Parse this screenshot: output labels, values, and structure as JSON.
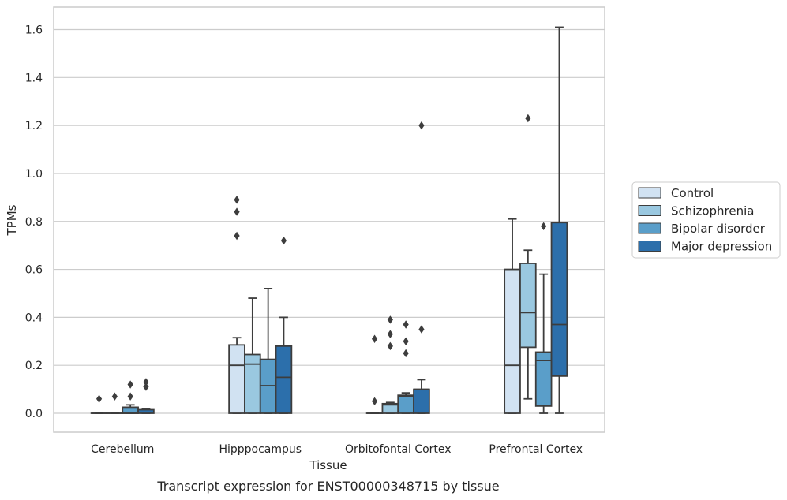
{
  "chart_data": {
    "type": "box",
    "xlabel": "Tissue",
    "ylabel": "TPMs",
    "caption": "Transcript expression for ENST00000348715 by tissue",
    "ylim": [
      -0.08,
      1.69
    ],
    "yticks": [
      "0.0",
      "0.2",
      "0.4",
      "0.6",
      "0.8",
      "1.0",
      "1.2",
      "1.4",
      "1.6"
    ],
    "grid": "horizontal",
    "legend_position": "right",
    "categories": [
      "Cerebellum",
      "Hipppocampus",
      "Orbitofontal Cortex",
      "Prefrontal Cortex"
    ],
    "series": [
      {
        "name": "Control",
        "color": "#d1e2f2",
        "boxes": [
          {
            "q1": 0.0,
            "median": 0.0,
            "q3": 0.0,
            "whislo": 0.0,
            "whishi": 0.0,
            "fliers": [
              0.06
            ]
          },
          {
            "q1": 0.0,
            "median": 0.2,
            "q3": 0.285,
            "whislo": 0.0,
            "whishi": 0.315,
            "fliers": [
              0.74,
              0.84,
              0.89
            ]
          },
          {
            "q1": 0.0,
            "median": 0.0,
            "q3": 0.0,
            "whislo": 0.0,
            "whishi": 0.0,
            "fliers": [
              0.05,
              0.31
            ]
          },
          {
            "q1": 0.0,
            "median": 0.2,
            "q3": 0.6,
            "whislo": 0.0,
            "whishi": 0.81,
            "fliers": []
          }
        ]
      },
      {
        "name": "Schizophrenia",
        "color": "#9ac8e0",
        "boxes": [
          {
            "q1": 0.0,
            "median": 0.0,
            "q3": 0.0,
            "whislo": 0.0,
            "whishi": 0.0,
            "fliers": [
              0.07
            ]
          },
          {
            "q1": 0.0,
            "median": 0.205,
            "q3": 0.245,
            "whislo": 0.0,
            "whishi": 0.48,
            "fliers": []
          },
          {
            "q1": 0.0,
            "median": 0.035,
            "q3": 0.04,
            "whislo": 0.0,
            "whishi": 0.045,
            "fliers": [
              0.28,
              0.33,
              0.39
            ]
          },
          {
            "q1": 0.275,
            "median": 0.42,
            "q3": 0.625,
            "whislo": 0.06,
            "whishi": 0.68,
            "fliers": [
              1.23
            ]
          }
        ]
      },
      {
        "name": "Bipolar disorder",
        "color": "#5a9ec9",
        "boxes": [
          {
            "q1": 0.0,
            "median": 0.0,
            "q3": 0.025,
            "whislo": 0.0,
            "whishi": 0.035,
            "fliers": [
              0.07,
              0.12
            ]
          },
          {
            "q1": 0.0,
            "median": 0.115,
            "q3": 0.225,
            "whislo": 0.0,
            "whishi": 0.52,
            "fliers": []
          },
          {
            "q1": 0.0,
            "median": 0.07,
            "q3": 0.075,
            "whislo": 0.0,
            "whishi": 0.085,
            "fliers": [
              0.25,
              0.3,
              0.37
            ]
          },
          {
            "q1": 0.03,
            "median": 0.22,
            "q3": 0.255,
            "whislo": 0.0,
            "whishi": 0.58,
            "fliers": [
              0.78
            ]
          }
        ]
      },
      {
        "name": "Major depression",
        "color": "#2c6fab",
        "boxes": [
          {
            "q1": 0.0,
            "median": 0.015,
            "q3": 0.018,
            "whislo": 0.0,
            "whishi": 0.02,
            "fliers": [
              0.11,
              0.13
            ]
          },
          {
            "q1": 0.0,
            "median": 0.15,
            "q3": 0.28,
            "whislo": 0.0,
            "whishi": 0.4,
            "fliers": [
              0.72
            ]
          },
          {
            "q1": 0.0,
            "median": 0.1,
            "q3": 0.1,
            "whislo": 0.0,
            "whishi": 0.14,
            "fliers": [
              0.35,
              1.2
            ]
          },
          {
            "q1": 0.155,
            "median": 0.37,
            "q3": 0.795,
            "whislo": 0.0,
            "whishi": 1.61,
            "fliers": []
          }
        ]
      }
    ]
  }
}
